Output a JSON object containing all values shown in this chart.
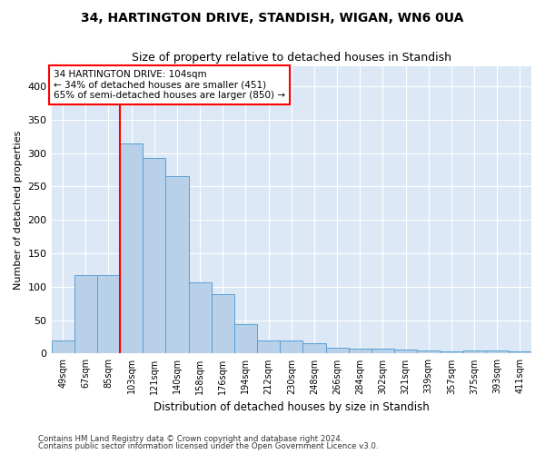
{
  "title1": "34, HARTINGTON DRIVE, STANDISH, WIGAN, WN6 0UA",
  "title2": "Size of property relative to detached houses in Standish",
  "xlabel": "Distribution of detached houses by size in Standish",
  "ylabel": "Number of detached properties",
  "categories": [
    "49sqm",
    "67sqm",
    "85sqm",
    "103sqm",
    "121sqm",
    "140sqm",
    "158sqm",
    "176sqm",
    "194sqm",
    "212sqm",
    "230sqm",
    "248sqm",
    "266sqm",
    "284sqm",
    "302sqm",
    "321sqm",
    "339sqm",
    "357sqm",
    "375sqm",
    "393sqm",
    "411sqm"
  ],
  "values": [
    19,
    118,
    118,
    315,
    293,
    265,
    106,
    89,
    44,
    20,
    20,
    15,
    9,
    8,
    8,
    6,
    5,
    3,
    4,
    4,
    3
  ],
  "bar_color": "#b8d0e8",
  "bar_edge_color": "#5a9fd4",
  "vline_x": 2.5,
  "annotation_line1": "34 HARTINGTON DRIVE: 104sqm",
  "annotation_line2": "← 34% of detached houses are smaller (451)",
  "annotation_line3": "65% of semi-detached houses are larger (850) →",
  "annotation_box_color": "white",
  "annotation_box_edge_color": "red",
  "vline_color": "red",
  "ylim": [
    0,
    430
  ],
  "yticks": [
    0,
    50,
    100,
    150,
    200,
    250,
    300,
    350,
    400
  ],
  "background_color": "#dce8f5",
  "grid_color": "white",
  "footer1": "Contains HM Land Registry data © Crown copyright and database right 2024.",
  "footer2": "Contains public sector information licensed under the Open Government Licence v3.0."
}
